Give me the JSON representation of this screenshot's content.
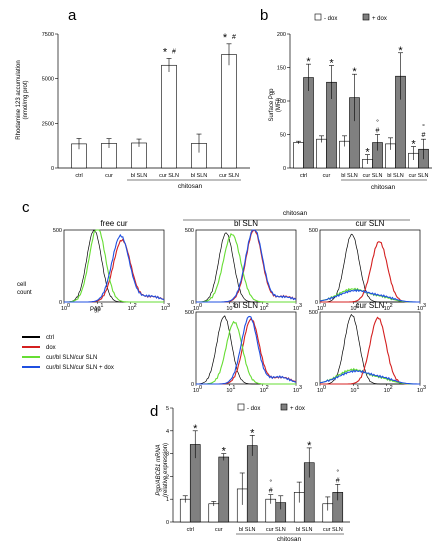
{
  "panels": [
    {
      "letter": "a",
      "chart_data": {
        "type": "bar",
        "ylabel_line1": "Rhodamine 123 accumulation",
        "ylabel_line2": "(nmol/mg prot)",
        "ylim": [
          0,
          7500
        ],
        "yticks": [
          "0",
          "2500",
          "5000",
          "7500"
        ],
        "ytick_values": [
          0,
          2500,
          5000,
          7500
        ],
        "categories": [
          "ctrl",
          "cur",
          "bl SLN",
          "cur SLN",
          "bl SLN",
          "cur SLN"
        ],
        "values": [
          1350,
          1380,
          1400,
          5750,
          1380,
          6350
        ],
        "errors": [
          300,
          260,
          220,
          380,
          520,
          600
        ],
        "annotations": [
          {
            "index": 3,
            "star": "*",
            "hash": "#"
          },
          {
            "index": 5,
            "star": "*",
            "hash": "#"
          }
        ],
        "group_label": "chitosan",
        "group_span": [
          2,
          5
        ],
        "bar_color": "#ffffff"
      }
    },
    {
      "letter": "b",
      "chart_data": {
        "type": "bar",
        "ylabel_line1": "Surface Pgp",
        "ylabel_line2": "(MFI)",
        "ylim": [
          0,
          200
        ],
        "yticks": [
          "0",
          "50",
          "100",
          "150",
          "200"
        ],
        "ytick_values": [
          0,
          50,
          100,
          150,
          200
        ],
        "categories": [
          "ctrl",
          "cur",
          "bl SLN",
          "cur SLN",
          "bl SLN",
          "cur SLN"
        ],
        "legend": [
          "- dox",
          "+ dox"
        ],
        "series": [
          {
            "name": "- dox",
            "color": "#ffffff",
            "values": [
              38,
              43,
              40,
              13,
              36,
              22
            ],
            "errors": [
              2,
              5,
              8,
              7,
              9,
              10
            ]
          },
          {
            "name": "+ dox",
            "color": "#808080",
            "values": [
              135,
              128,
              105,
              38,
              137,
              28
            ],
            "errors": [
              20,
              25,
              35,
              12,
              35,
              15
            ]
          }
        ],
        "annotations": [
          {
            "index": 0,
            "series": 1,
            "marks": [
              "*"
            ]
          },
          {
            "index": 1,
            "series": 1,
            "marks": [
              "*"
            ]
          },
          {
            "index": 2,
            "series": 1,
            "marks": [
              "*"
            ]
          },
          {
            "index": 3,
            "series": 0,
            "marks": [
              "*"
            ]
          },
          {
            "index": 3,
            "series": 1,
            "marks": [
              "#",
              "°"
            ]
          },
          {
            "index": 4,
            "series": 1,
            "marks": [
              "*"
            ]
          },
          {
            "index": 5,
            "series": 0,
            "marks": [
              "*"
            ]
          },
          {
            "index": 5,
            "series": 1,
            "marks": [
              "#",
              "°"
            ]
          }
        ],
        "group_label": "chitosan",
        "group_span": [
          2,
          5
        ]
      }
    },
    {
      "letter": "c",
      "chart_data": {
        "type": "line",
        "note": "flow cytometry histograms, log x axis",
        "ylabel": [
          "cell",
          "count"
        ],
        "xlabel": "Pgp",
        "yticks": [
          "0",
          "500"
        ],
        "xticks": [
          "10",
          "10",
          "10",
          "10"
        ],
        "xtick_exponents": [
          "0",
          "1",
          "2",
          "3"
        ],
        "x_log_range": [
          1,
          1000
        ],
        "y_range": [
          0,
          500
        ],
        "group_label": "chitosan",
        "histograms": [
          {
            "title": "free cur",
            "peaks": [
              {
                "series": "ctrl",
                "mu": 8,
                "h": 500,
                "w": 0.22
              },
              {
                "series": "dox",
                "mu": 55,
                "h": 430,
                "w": 0.26,
                "tail": 0.25
              },
              {
                "series": "cur/bl SLN/cur SLN",
                "mu": 10,
                "h": 520,
                "w": 0.24
              },
              {
                "series": "cur/bl SLN/cur SLN + dox",
                "mu": 50,
                "h": 460,
                "w": 0.26,
                "tail": 0.25
              }
            ]
          },
          {
            "title": "bl SLN",
            "peaks": [
              {
                "series": "ctrl",
                "mu": 8,
                "h": 480,
                "w": 0.22
              },
              {
                "series": "dox",
                "mu": 55,
                "h": 500,
                "w": 0.24,
                "tail": 0.22
              },
              {
                "series": "cur/bl SLN/cur SLN",
                "mu": 12,
                "h": 470,
                "w": 0.26
              },
              {
                "series": "cur/bl SLN/cur SLN + dox",
                "mu": 55,
                "h": 510,
                "w": 0.25,
                "tail": 0.2
              }
            ]
          },
          {
            "title": "cur SLN",
            "peaks": [
              {
                "series": "ctrl",
                "mu": 9,
                "h": 470,
                "w": 0.22
              },
              {
                "series": "dox",
                "mu": 60,
                "h": 420,
                "w": 0.24
              },
              {
                "series": "cur/bl SLN/cur SLN",
                "mu": 10,
                "h": 90,
                "w": 0.45,
                "tail": 0.8
              },
              {
                "series": "cur/bl SLN/cur SLN + dox",
                "mu": 12,
                "h": 80,
                "w": 0.5,
                "tail": 0.8
              }
            ]
          },
          {
            "title": "bl SLN",
            "peaks": [
              {
                "series": "ctrl",
                "mu": 7,
                "h": 470,
                "w": 0.22
              },
              {
                "series": "dox",
                "mu": 45,
                "h": 450,
                "w": 0.24,
                "tail": 0.3
              },
              {
                "series": "cur/bl SLN/cur SLN",
                "mu": 14,
                "h": 430,
                "w": 0.24
              },
              {
                "series": "cur/bl SLN/cur SLN + dox",
                "mu": 40,
                "h": 470,
                "w": 0.24,
                "tail": 0.3
              }
            ]
          },
          {
            "title": "cur SLN",
            "peaks": [
              {
                "series": "ctrl",
                "mu": 9,
                "h": 480,
                "w": 0.22
              },
              {
                "series": "dox",
                "mu": 55,
                "h": 460,
                "w": 0.24
              },
              {
                "series": "cur/bl SLN/cur SLN",
                "mu": 10,
                "h": 100,
                "w": 0.45,
                "tail": 0.8
              },
              {
                "series": "cur/bl SLN/cur SLN + dox",
                "mu": 12,
                "h": 90,
                "w": 0.5,
                "tail": 0.8
              }
            ]
          }
        ],
        "legend": [
          {
            "label": "ctrl",
            "color": "#000000"
          },
          {
            "label": "dox",
            "color": "#d42020"
          },
          {
            "label": "cur/bl SLN/cur SLN",
            "color": "#66dd33"
          },
          {
            "label": "cur/bl SLN/cur SLN + dox",
            "color": "#1f4fe0"
          }
        ]
      }
    },
    {
      "letter": "d",
      "chart_data": {
        "type": "bar",
        "ylabel_line1": "Pgp/ABCB1 mRNA",
        "ylabel_line2": "(relative expression)",
        "ylim": [
          0,
          5
        ],
        "yticks": [
          "0",
          "1",
          "2",
          "3",
          "4",
          "5"
        ],
        "ytick_values": [
          0,
          1,
          2,
          3,
          4,
          5
        ],
        "categories": [
          "ctrl",
          "cur",
          "bl SLN",
          "cur SLN",
          "bl SLN",
          "cur SLN"
        ],
        "legend": [
          "- dox",
          "+ dox"
        ],
        "series": [
          {
            "name": "- dox",
            "color": "#ffffff",
            "values": [
              1.0,
              0.8,
              1.45,
              1.0,
              1.3,
              0.8
            ],
            "errors": [
              0.15,
              0.1,
              0.7,
              0.2,
              0.45,
              0.3
            ]
          },
          {
            "name": "+ dox",
            "color": "#808080",
            "values": [
              3.4,
              2.85,
              3.35,
              0.85,
              2.6,
              1.3
            ],
            "errors": [
              0.6,
              0.15,
              0.45,
              0.3,
              0.65,
              0.35
            ]
          }
        ],
        "annotations": [
          {
            "index": 0,
            "series": 1,
            "marks": [
              "*"
            ]
          },
          {
            "index": 1,
            "series": 1,
            "marks": [
              "*"
            ]
          },
          {
            "index": 2,
            "series": 1,
            "marks": [
              "*"
            ]
          },
          {
            "index": 3,
            "series": 0,
            "marks": [
              "#",
              "°"
            ]
          },
          {
            "index": 4,
            "series": 1,
            "marks": [
              "*"
            ]
          },
          {
            "index": 5,
            "series": 1,
            "marks": [
              "#",
              "°"
            ]
          }
        ],
        "group_label": "chitosan",
        "group_span": [
          2,
          5
        ]
      }
    }
  ]
}
